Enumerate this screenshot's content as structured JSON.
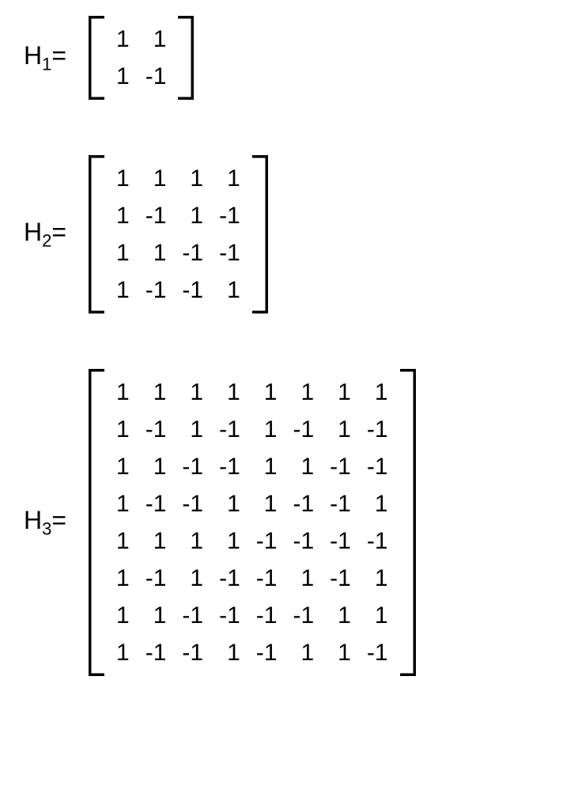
{
  "font_family": "Verdana, sans-serif",
  "text_color": "#000000",
  "background_color": "#ffffff",
  "cell_fontsize": 30,
  "label_fontsize": 32,
  "sub_fontsize": 22,
  "bracket_stroke": "#000000",
  "bracket_stroke_width": 3.5,
  "bracket_notch": 14,
  "block_spacing": 70,
  "matrices": [
    {
      "name": "H",
      "subscript": "1",
      "rows": [
        [
          "1",
          "1"
        ],
        [
          "1",
          "-1"
        ]
      ]
    },
    {
      "name": "H",
      "subscript": "2",
      "rows": [
        [
          "1",
          "1",
          "1",
          "1"
        ],
        [
          "1",
          "-1",
          "1",
          "-1"
        ],
        [
          "1",
          "1",
          "-1",
          "-1"
        ],
        [
          "1",
          "-1",
          "-1",
          "1"
        ]
      ]
    },
    {
      "name": "H",
      "subscript": "3",
      "rows": [
        [
          "1",
          "1",
          "1",
          "1",
          "1",
          "1",
          "1",
          "1"
        ],
        [
          "1",
          "-1",
          "1",
          "-1",
          "1",
          "-1",
          "1",
          "-1"
        ],
        [
          "1",
          "1",
          "-1",
          "-1",
          "1",
          "1",
          "-1",
          "-1"
        ],
        [
          "1",
          "-1",
          "-1",
          "1",
          "1",
          "-1",
          "-1",
          "1"
        ],
        [
          "1",
          "1",
          "1",
          "1",
          "-1",
          "-1",
          "-1",
          "-1"
        ],
        [
          "1",
          "-1",
          "1",
          "-1",
          "-1",
          "1",
          "-1",
          "1"
        ],
        [
          "1",
          "1",
          "-1",
          "-1",
          "-1",
          "-1",
          "1",
          "1"
        ],
        [
          "1",
          "-1",
          "-1",
          "1",
          "-1",
          "1",
          "1",
          "-1"
        ]
      ]
    }
  ]
}
